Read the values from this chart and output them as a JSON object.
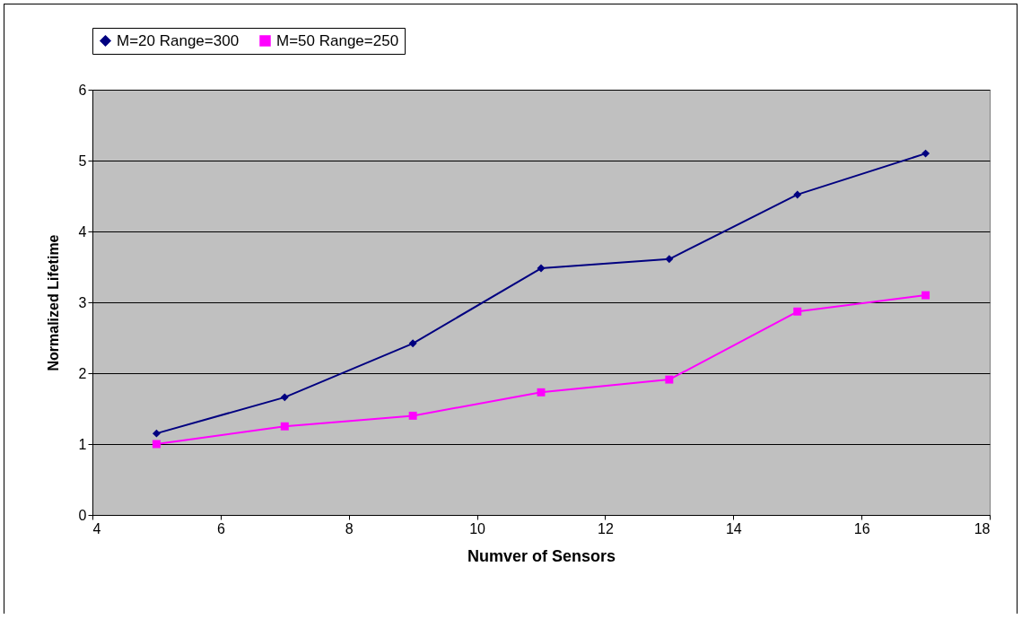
{
  "chart_data": {
    "type": "line",
    "xlabel": "Numver of Sensors",
    "ylabel": "Normalized Lifetime",
    "x": [
      5,
      7,
      9,
      11,
      13,
      15,
      17
    ],
    "series": [
      {
        "name": "M=20 Range=300",
        "color": "#000080",
        "marker": "diamond",
        "values": [
          1.15,
          1.66,
          2.42,
          3.48,
          3.61,
          4.52,
          5.1
        ]
      },
      {
        "name": "M=50 Range=250",
        "color": "#ff00ff",
        "marker": "square",
        "values": [
          1.0,
          1.25,
          1.4,
          1.73,
          1.91,
          2.87,
          3.1
        ]
      }
    ],
    "xlim": [
      4,
      18
    ],
    "xticks": [
      4,
      6,
      8,
      10,
      12,
      14,
      16,
      18
    ],
    "ylim": [
      0,
      6
    ],
    "yticks": [
      0,
      1,
      2,
      3,
      4,
      5,
      6
    ],
    "grid": "y",
    "legend": "top"
  }
}
